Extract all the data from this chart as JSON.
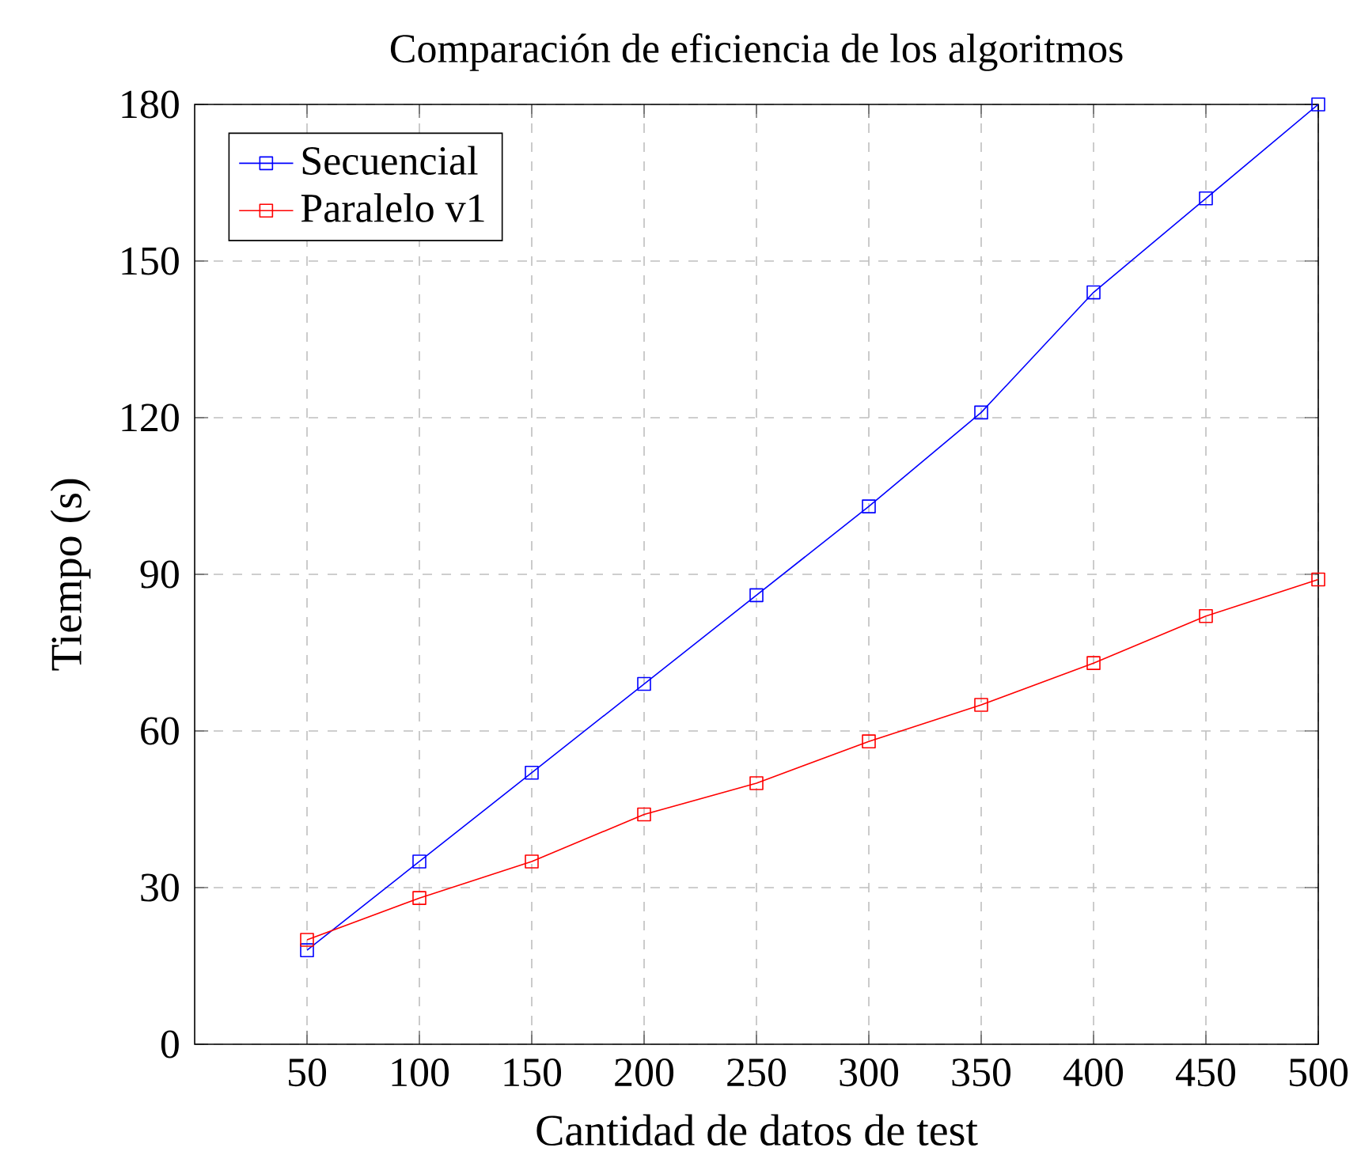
{
  "chart_data": {
    "type": "line",
    "title": "Comparación de eficiencia de los algoritmos",
    "xlabel": "Cantidad de datos de test",
    "ylabel": "Tiempo (s)",
    "x": [
      50,
      100,
      150,
      200,
      250,
      300,
      350,
      400,
      450,
      500
    ],
    "series": [
      {
        "name": "Secuencial",
        "color": "#0000ff",
        "values": [
          18,
          35,
          52,
          69,
          86,
          103,
          121,
          144,
          162,
          180
        ]
      },
      {
        "name": "Paralelo v1",
        "color": "#ff0000",
        "values": [
          20,
          28,
          35,
          44,
          50,
          58,
          65,
          73,
          82,
          89
        ]
      }
    ],
    "xlim": [
      0,
      500
    ],
    "ylim": [
      0,
      180
    ],
    "xticks": [
      50,
      100,
      150,
      200,
      250,
      300,
      350,
      400,
      450,
      500
    ],
    "yticks": [
      0,
      30,
      60,
      90,
      120,
      150,
      180
    ],
    "grid": true,
    "legend": "top left",
    "marker": "square",
    "line_style": "solid"
  }
}
